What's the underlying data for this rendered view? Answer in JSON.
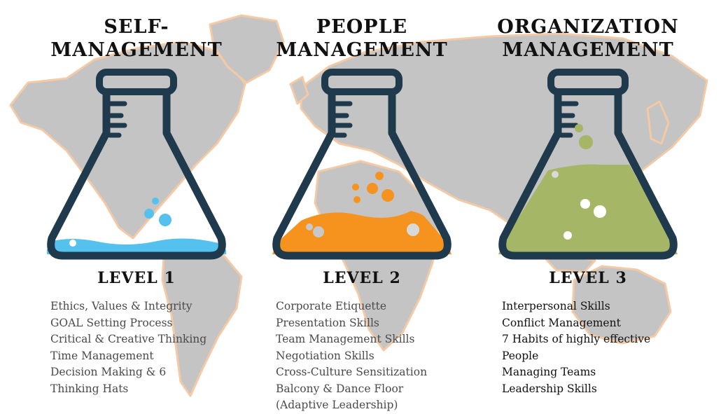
{
  "colors": {
    "map": "#c4c4c4",
    "map_outline": "#f3c9a6",
    "flask_outline": "#1f3a4d",
    "level_1_liquid": "#55c1ee",
    "level_2_liquid": "#f6931f",
    "level_3_liquid": "#a5b766"
  },
  "columns": [
    {
      "heading_lines": [
        "SELF-",
        "MANAGEMENT"
      ],
      "level": "LEVEL 1",
      "skills": [
        "Ethics, Values & Integrity",
        "GOAL Setting Process",
        "Critical & Creative Thinking",
        "Time Management",
        "Decision Making & 6",
        "Thinking Hats"
      ]
    },
    {
      "heading_lines": [
        "PEOPLE",
        "MANAGEMENT"
      ],
      "level": "LEVEL 2",
      "skills": [
        "Corporate Etiquette",
        "Presentation Skills",
        "Team Management Skills",
        "Negotiation Skills",
        "Cross-Culture Sensitization",
        "Balcony & Dance Floor",
        "(Adaptive Leadership)"
      ]
    },
    {
      "heading_lines": [
        "ORGANIZATION",
        "MANAGEMENT"
      ],
      "level": "LEVEL 3",
      "skills": [
        "Interpersonal Skills",
        "Conflict Management",
        "7 Habits of highly effective",
        "People",
        "Managing Teams",
        "Leadership Skills"
      ]
    }
  ]
}
